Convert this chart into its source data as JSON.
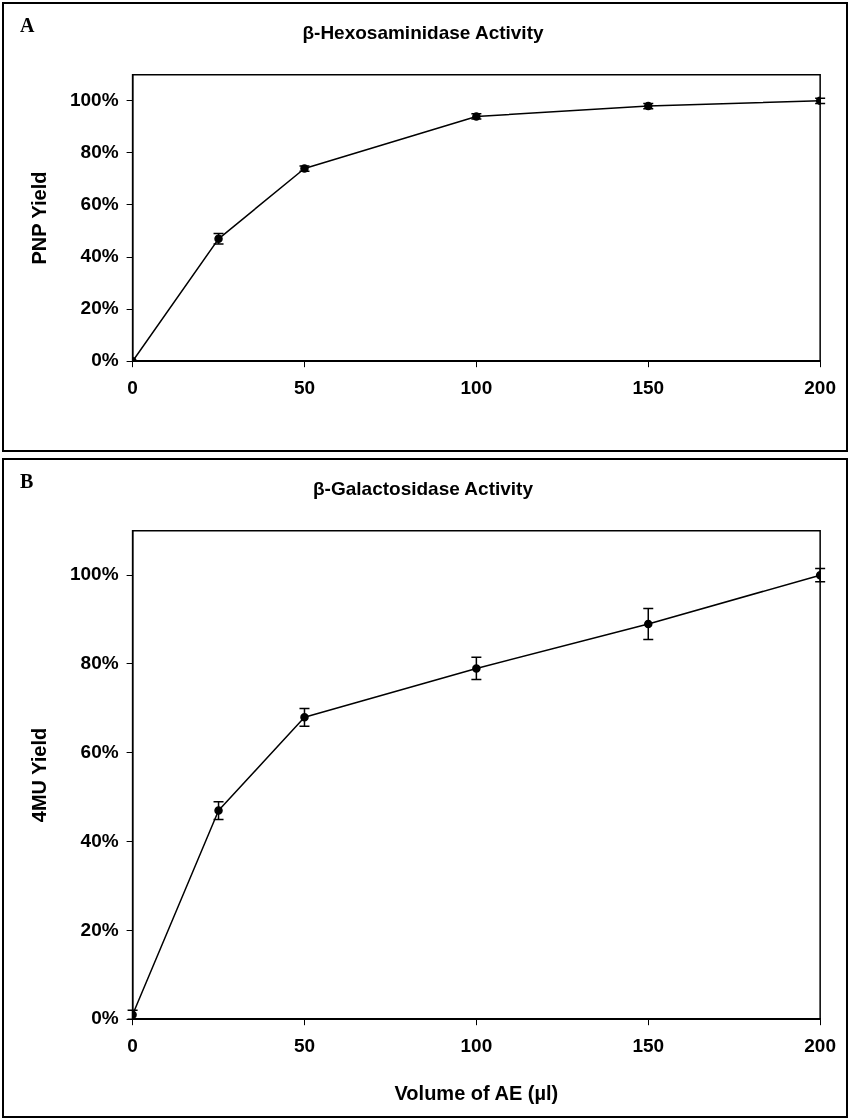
{
  "chart_data": [
    {
      "type": "line",
      "title": "β-Hexosaminidase Activity",
      "ylabel": "PNP Yield",
      "annotations": [
        "A"
      ],
      "x": [
        0,
        25,
        50,
        100,
        150,
        200
      ],
      "series": [
        {
          "color": "#000000",
          "values": [
            0,
            47,
            74,
            94,
            98,
            100
          ],
          "errors": [
            null,
            2,
            1,
            1,
            1,
            1
          ]
        }
      ],
      "xlim": [
        0,
        200
      ],
      "xticks": [
        0,
        50,
        100,
        150,
        200
      ],
      "ylim": [
        0,
        110
      ],
      "yticks": [
        {
          "value": 0,
          "label": "0%"
        },
        {
          "value": 20,
          "label": "20%"
        },
        {
          "value": 40,
          "label": "40%"
        },
        {
          "value": 60,
          "label": "60%"
        },
        {
          "value": 80,
          "label": "80%"
        },
        {
          "value": 100,
          "label": "100%"
        }
      ],
      "grid": false,
      "legend": false,
      "marker": "circle",
      "line_style": "solid"
    },
    {
      "type": "line",
      "title": "β-Galactosidase Activity",
      "xlabel": "Volume of AE (µl)",
      "ylabel": "4MU Yield",
      "annotations": [
        "B"
      ],
      "x": [
        0,
        25,
        50,
        100,
        150,
        200
      ],
      "series": [
        {
          "color": "#000000",
          "values": [
            1,
            47,
            68,
            79,
            89,
            100
          ],
          "errors": [
            1,
            2,
            2,
            2.5,
            3.5,
            1.5
          ]
        }
      ],
      "xlim": [
        0,
        200
      ],
      "xticks": [
        0,
        50,
        100,
        150,
        200
      ],
      "ylim": [
        0,
        110
      ],
      "yticks": [
        {
          "value": 0,
          "label": "0%"
        },
        {
          "value": 20,
          "label": "20%"
        },
        {
          "value": 40,
          "label": "40%"
        },
        {
          "value": 60,
          "label": "60%"
        },
        {
          "value": 80,
          "label": "80%"
        },
        {
          "value": 100,
          "label": "100%"
        }
      ],
      "grid": false,
      "legend": false,
      "marker": "circle",
      "line_style": "solid"
    }
  ]
}
